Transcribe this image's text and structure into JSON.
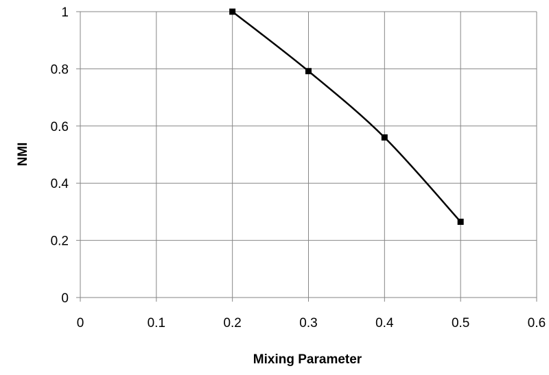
{
  "chart_data": {
    "type": "line",
    "title": "",
    "xlabel": "Mixing Parameter",
    "ylabel": "NMI",
    "xlim": [
      0,
      0.6
    ],
    "ylim": [
      0,
      1
    ],
    "x_ticks": [
      "0",
      "0.1",
      "0.2",
      "0.3",
      "0.4",
      "0.5",
      "0.6"
    ],
    "y_ticks": [
      "0",
      "0.2",
      "0.4",
      "0.6",
      "0.8",
      "1"
    ],
    "grid": true,
    "legend": "none",
    "line_color": "#000000",
    "grid_color": "#868686",
    "marker": "square",
    "series": [
      {
        "x": [
          0.2,
          0.3,
          0.4,
          0.5
        ],
        "y": [
          1.0,
          0.792,
          0.56,
          0.265
        ]
      }
    ]
  }
}
